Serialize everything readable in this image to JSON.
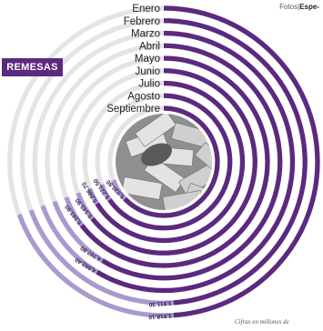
{
  "header": {
    "credit_prefix": "Fotos",
    "credit_suffix": "Espe-"
  },
  "badge_label": "REMESAS",
  "footnote": "Cifras en millones de",
  "colors": {
    "current_series": "#5b2a7e",
    "prior_series": "#a999cf",
    "badge": "#5b2a7e"
  },
  "chart_data": {
    "type": "radial-bar",
    "categories": [
      "Enero",
      "Febrero",
      "Marzo",
      "Abril",
      "Mayo",
      "Junio",
      "Julio",
      "Agosto",
      "Septiembre"
    ],
    "value_labels": [
      "3,918.10",
      "3,911.30",
      "4,692.40",
      "4,707.80",
      "5,161.90",
      "5,143.90",
      "5,286.70",
      "5,221.50",
      "5,030.80"
    ],
    "values": [
      3918.1,
      3911.3,
      4692.4,
      4707.8,
      5161.9,
      5143.9,
      5286.7,
      5221.5,
      5030.8
    ]
  }
}
